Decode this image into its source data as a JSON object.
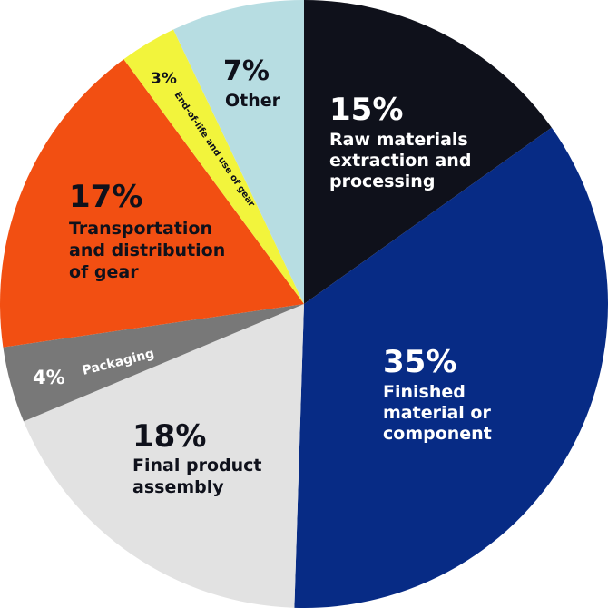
{
  "chart_data": {
    "type": "pie",
    "start_angle_deg": 0,
    "direction": "clockwise",
    "slices": [
      {
        "value": 15,
        "pct_label": "15%",
        "label": [
          "Raw materials",
          "extraction and",
          "processing"
        ],
        "color": "#0f111b",
        "text_color": "#ffffff"
      },
      {
        "value": 35,
        "pct_label": "35%",
        "label": [
          "Finished",
          "material or",
          "component"
        ],
        "color": "#072b85",
        "text_color": "#ffffff"
      },
      {
        "value": 18,
        "pct_label": "18%",
        "label": [
          "Final product",
          "assembly"
        ],
        "color": "#e2e2e2",
        "text_color": "#0f111b"
      },
      {
        "value": 4,
        "pct_label": "4%",
        "label": [
          "Packaging"
        ],
        "color": "#787878",
        "text_color": "#ffffff"
      },
      {
        "value": 17,
        "pct_label": "17%",
        "label": [
          "Transportation",
          "and distribution",
          "of gear"
        ],
        "color": "#f24f12",
        "text_color": "#0f111b"
      },
      {
        "value": 3,
        "pct_label": "3%",
        "label": [
          "End-of-life and use of gear"
        ],
        "color": "#f2f43c",
        "text_color": "#0f111b"
      },
      {
        "value": 7,
        "pct_label": "7%",
        "label": [
          "Other"
        ],
        "color": "#b7dde2",
        "text_color": "#0f111b"
      }
    ]
  }
}
